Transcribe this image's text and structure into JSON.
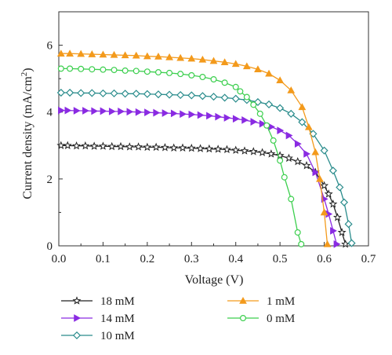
{
  "chart_data": {
    "type": "line",
    "xlabel": "Voltage (V)",
    "ylabel": "Current density (mA/cm",
    "ylabel_superscript": "2",
    "ylabel_suffix": ")",
    "xlim": [
      0,
      0.7
    ],
    "ylim": [
      0,
      7
    ],
    "xticks": [
      "0.0",
      "0.1",
      "0.2",
      "0.3",
      "0.4",
      "0.5",
      "0.6",
      "0.7"
    ],
    "yticks": [
      "0",
      "2",
      "4",
      "6"
    ],
    "grid": false,
    "legend_position": "bottom",
    "series": [
      {
        "name": "18 mM",
        "color": "#222222",
        "marker": "star",
        "x": [
          0.005,
          0.02,
          0.04,
          0.06,
          0.08,
          0.1,
          0.12,
          0.14,
          0.16,
          0.18,
          0.2,
          0.22,
          0.24,
          0.26,
          0.28,
          0.3,
          0.32,
          0.34,
          0.36,
          0.38,
          0.4,
          0.42,
          0.44,
          0.46,
          0.48,
          0.5,
          0.52,
          0.54,
          0.56,
          0.58,
          0.6,
          0.61,
          0.62,
          0.63,
          0.64,
          0.648
        ],
        "y": [
          3.0,
          3.0,
          2.99,
          2.99,
          2.98,
          2.98,
          2.97,
          2.97,
          2.96,
          2.96,
          2.95,
          2.95,
          2.94,
          2.93,
          2.93,
          2.92,
          2.91,
          2.9,
          2.89,
          2.88,
          2.86,
          2.84,
          2.82,
          2.79,
          2.75,
          2.7,
          2.62,
          2.52,
          2.4,
          2.2,
          1.8,
          1.55,
          1.25,
          0.85,
          0.4,
          0.05
        ]
      },
      {
        "name": "14 mM",
        "color": "#8a2be2",
        "marker": "triangle-right",
        "x": [
          0.005,
          0.02,
          0.04,
          0.06,
          0.08,
          0.1,
          0.12,
          0.14,
          0.16,
          0.18,
          0.2,
          0.22,
          0.24,
          0.26,
          0.28,
          0.3,
          0.32,
          0.34,
          0.36,
          0.38,
          0.4,
          0.42,
          0.44,
          0.46,
          0.48,
          0.5,
          0.52,
          0.54,
          0.56,
          0.58,
          0.6,
          0.61,
          0.62,
          0.628
        ],
        "y": [
          4.05,
          4.05,
          4.04,
          4.04,
          4.03,
          4.03,
          4.02,
          4.02,
          4.01,
          4.0,
          3.99,
          3.98,
          3.97,
          3.96,
          3.94,
          3.93,
          3.91,
          3.89,
          3.86,
          3.83,
          3.8,
          3.76,
          3.71,
          3.65,
          3.56,
          3.45,
          3.3,
          3.05,
          2.75,
          2.2,
          1.4,
          0.95,
          0.45,
          0.05
        ]
      },
      {
        "name": "10 mM",
        "color": "#2a8c8c",
        "marker": "diamond",
        "x": [
          0.005,
          0.025,
          0.05,
          0.075,
          0.1,
          0.125,
          0.15,
          0.175,
          0.2,
          0.225,
          0.25,
          0.275,
          0.3,
          0.325,
          0.35,
          0.375,
          0.4,
          0.425,
          0.45,
          0.475,
          0.5,
          0.525,
          0.55,
          0.575,
          0.6,
          0.62,
          0.635,
          0.645,
          0.655,
          0.662
        ],
        "y": [
          4.58,
          4.58,
          4.57,
          4.57,
          4.56,
          4.56,
          4.55,
          4.55,
          4.54,
          4.53,
          4.52,
          4.51,
          4.5,
          4.48,
          4.46,
          4.43,
          4.4,
          4.36,
          4.3,
          4.23,
          4.12,
          3.95,
          3.7,
          3.35,
          2.85,
          2.25,
          1.75,
          1.3,
          0.65,
          0.08
        ]
      },
      {
        "name": "1 mM",
        "color": "#f39a1c",
        "marker": "triangle-up",
        "x": [
          0.005,
          0.025,
          0.05,
          0.075,
          0.1,
          0.125,
          0.15,
          0.175,
          0.2,
          0.225,
          0.25,
          0.275,
          0.3,
          0.325,
          0.35,
          0.375,
          0.4,
          0.425,
          0.45,
          0.475,
          0.5,
          0.525,
          0.55,
          0.565,
          0.58,
          0.59,
          0.6,
          0.607
        ],
        "y": [
          5.75,
          5.75,
          5.74,
          5.73,
          5.72,
          5.71,
          5.7,
          5.69,
          5.67,
          5.66,
          5.64,
          5.62,
          5.6,
          5.57,
          5.53,
          5.49,
          5.44,
          5.37,
          5.28,
          5.15,
          4.95,
          4.65,
          4.15,
          3.55,
          2.8,
          2.0,
          1.0,
          0.05
        ]
      },
      {
        "name": "0 mM",
        "color": "#3ccf4e",
        "marker": "circle",
        "x": [
          0.005,
          0.025,
          0.05,
          0.075,
          0.1,
          0.125,
          0.15,
          0.175,
          0.2,
          0.225,
          0.25,
          0.275,
          0.3,
          0.325,
          0.35,
          0.375,
          0.4,
          0.41,
          0.425,
          0.44,
          0.455,
          0.47,
          0.485,
          0.5,
          0.51,
          0.525,
          0.54,
          0.548
        ],
        "y": [
          5.3,
          5.3,
          5.29,
          5.28,
          5.27,
          5.26,
          5.24,
          5.23,
          5.21,
          5.19,
          5.17,
          5.14,
          5.1,
          5.05,
          4.98,
          4.88,
          4.75,
          4.62,
          4.45,
          4.22,
          3.95,
          3.6,
          3.15,
          2.55,
          2.05,
          1.4,
          0.4,
          0.05
        ]
      }
    ]
  }
}
